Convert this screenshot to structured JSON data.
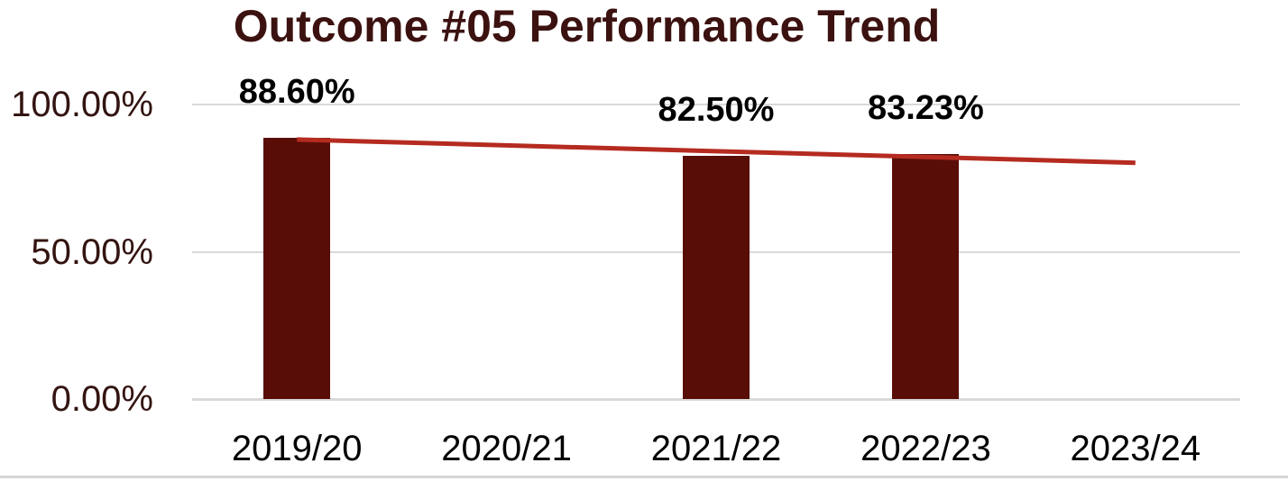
{
  "chart_data": {
    "type": "bar",
    "title": "Outcome #05 Performance Trend",
    "categories": [
      "2019/20",
      "2020/21",
      "2021/22",
      "2022/23",
      "2023/24"
    ],
    "series": [
      {
        "name": "performance-columns",
        "type": "column",
        "values": [
          88.6,
          null,
          82.5,
          83.23,
          null
        ],
        "data_labels": [
          "88.60%",
          "",
          "82.50%",
          "83.23%",
          ""
        ],
        "color": "#580E07"
      },
      {
        "name": "linear-trendline",
        "type": "trendline",
        "start_value": 88.1,
        "end_value": 80.2,
        "color": "#B52B20"
      }
    ],
    "y_axis": {
      "min": 0,
      "max": 100,
      "ticks": [
        {
          "label": "100.00%",
          "value": 100
        },
        {
          "label": "50.00%",
          "value": 50
        },
        {
          "label": "0.00%",
          "value": 0
        }
      ]
    },
    "grid": true,
    "legend": "none"
  },
  "styles": {
    "title_color": "#3B1210",
    "y_label_color": "#331411",
    "x_label_color": "#000000",
    "data_label_color": "#000000",
    "gridline_color": "#D9D9D9",
    "background": "#FFFFFF",
    "bottom_border_color": "#D6D6D6"
  }
}
